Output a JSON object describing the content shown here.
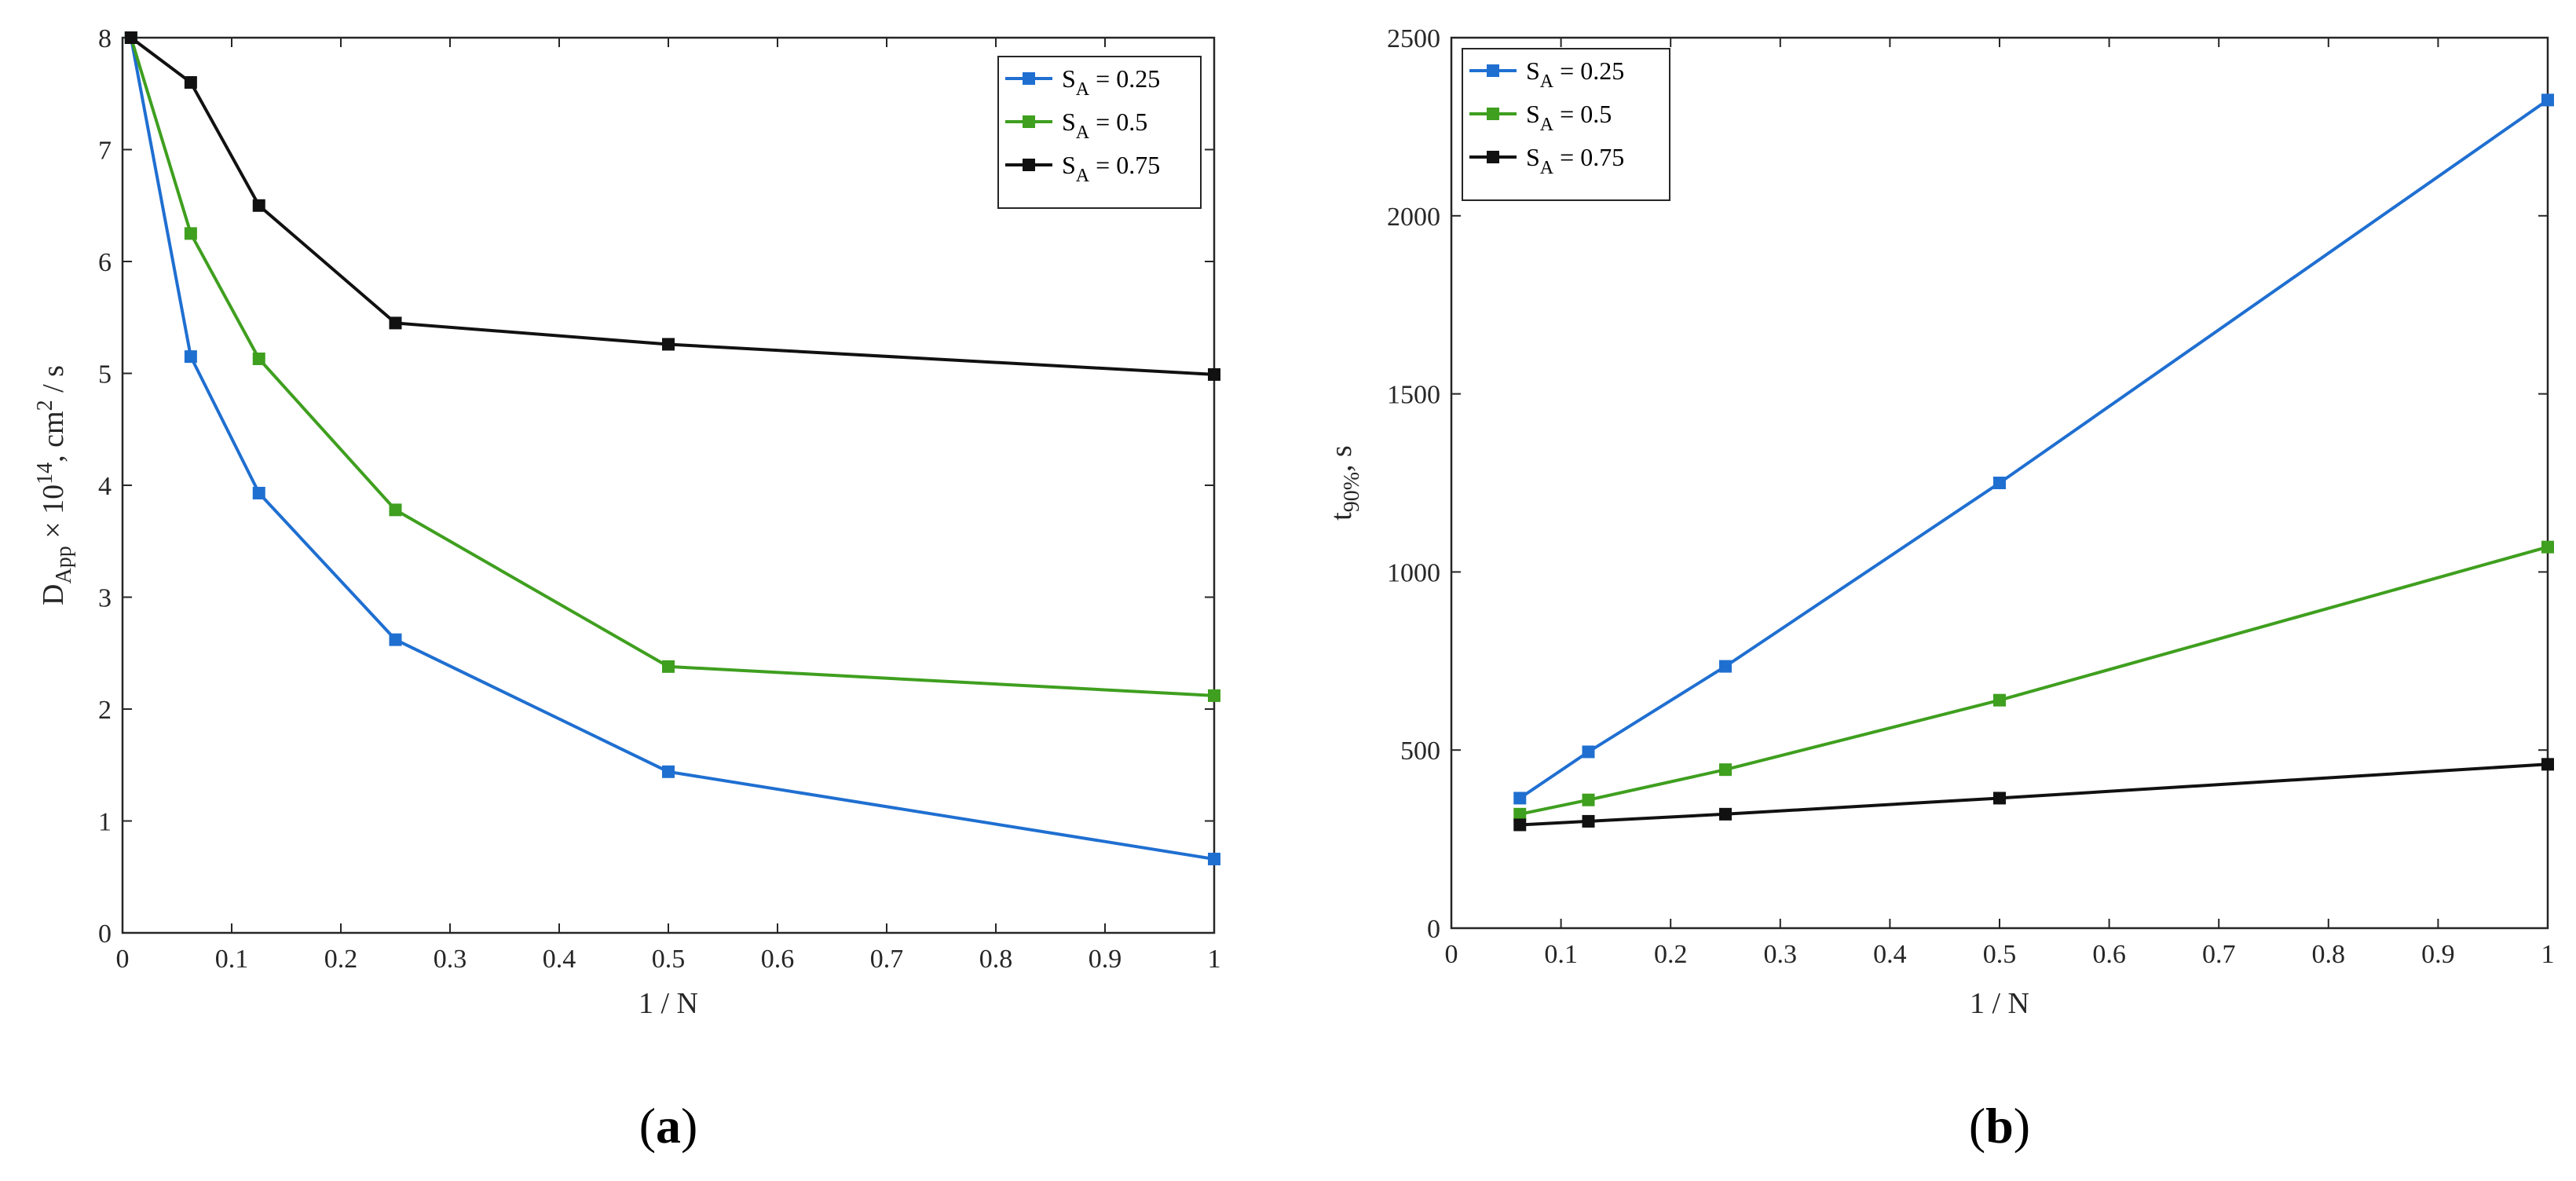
{
  "colors": {
    "blue": "#1f6fd1",
    "green": "#3f9f1f",
    "black": "#111111"
  },
  "chart_data": [
    {
      "type": "line",
      "caption_open": "(",
      "caption_letter": "a",
      "caption_close": ")",
      "xlabel": "1 / N",
      "ylabel": {
        "sym": "D",
        "sub": "App",
        "mid": " × 10",
        "sup": "14",
        "unit": ", cm",
        "unit_sup": "2",
        "tail": " / s"
      },
      "xlim": [
        0,
        1
      ],
      "ylim": [
        0,
        8
      ],
      "xticks": [
        "0",
        "0.1",
        "0.2",
        "0.3",
        "0.4",
        "0.5",
        "0.6",
        "0.7",
        "0.8",
        "0.9",
        "1"
      ],
      "yticks": [
        "0",
        "1",
        "2",
        "3",
        "4",
        "5",
        "6",
        "7",
        "8"
      ],
      "legend": "top-right",
      "series": [
        {
          "name": "S_A = 0.25",
          "label_s": "S",
          "label_sub": "A",
          "label_rest": " = 0.25",
          "color": "#1f6fd1",
          "x": [
            0.0078,
            0.0625,
            0.125,
            0.25,
            0.5,
            1
          ],
          "y": [
            8.0,
            5.15,
            3.93,
            2.62,
            1.44,
            0.66
          ]
        },
        {
          "name": "S_A = 0.5",
          "label_s": "S",
          "label_sub": "A",
          "label_rest": " = 0.5",
          "color": "#3f9f1f",
          "x": [
            0.0078,
            0.0625,
            0.125,
            0.25,
            0.5,
            1
          ],
          "y": [
            8.0,
            6.25,
            5.13,
            3.78,
            2.38,
            2.12
          ]
        },
        {
          "name": "S_A = 0.75",
          "label_s": "S",
          "label_sub": "A",
          "label_rest": " = 0.75",
          "color": "#111111",
          "x": [
            0.0078,
            0.0625,
            0.125,
            0.25,
            0.5,
            1
          ],
          "y": [
            8.0,
            7.6,
            6.5,
            5.45,
            5.26,
            4.99
          ]
        }
      ]
    },
    {
      "type": "line",
      "caption_open": "(",
      "caption_letter": "b",
      "caption_close": ")",
      "xlabel": "1 / N",
      "ylabel": {
        "sym": "t",
        "sub": "90%",
        "tail": ", s"
      },
      "xlim": [
        0,
        1
      ],
      "ylim": [
        0,
        2500
      ],
      "xticks": [
        "0",
        "0.1",
        "0.2",
        "0.3",
        "0.4",
        "0.5",
        "0.6",
        "0.7",
        "0.8",
        "0.9",
        "1"
      ],
      "yticks": [
        "0",
        "500",
        "1000",
        "1500",
        "2000",
        "2500"
      ],
      "legend": "top-left",
      "series": [
        {
          "name": "S_A = 0.25",
          "label_s": "S",
          "label_sub": "A",
          "label_rest": " = 0.25",
          "color": "#1f6fd1",
          "x": [
            0.0625,
            0.125,
            0.25,
            0.5,
            1
          ],
          "y": [
            365,
            495,
            735,
            1250,
            2325
          ]
        },
        {
          "name": "S_A = 0.5",
          "label_s": "S",
          "label_sub": "A",
          "label_rest": " = 0.5",
          "color": "#3f9f1f",
          "x": [
            0.0625,
            0.125,
            0.25,
            0.5,
            1
          ],
          "y": [
            320,
            360,
            445,
            640,
            1070
          ]
        },
        {
          "name": "S_A = 0.75",
          "label_s": "S",
          "label_sub": "A",
          "label_rest": " = 0.75",
          "color": "#111111",
          "x": [
            0.0625,
            0.125,
            0.25,
            0.5,
            1
          ],
          "y": [
            290,
            300,
            320,
            365,
            460
          ]
        }
      ]
    }
  ]
}
